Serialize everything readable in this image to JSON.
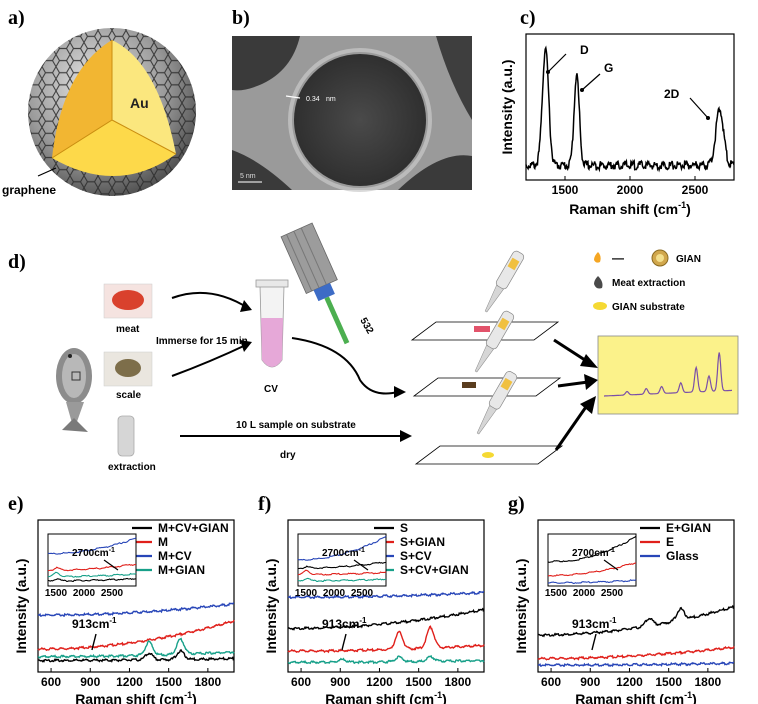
{
  "figure": {
    "panel_labels": [
      "a)",
      "b)",
      "c)",
      "d)",
      "e)",
      "f)",
      "g)"
    ]
  },
  "panel_a": {
    "core_label": "Au",
    "shell_label": "graphene",
    "colors": {
      "core": "#f2c23a",
      "core_light": "#fbe77e",
      "shell": "#8c8c8c"
    }
  },
  "panel_b": {
    "lattice_label": "0.34",
    "lattice_unit": "nm",
    "scale_bar": "5 nm"
  },
  "chart_data": [
    {
      "id": "c",
      "type": "line",
      "title": "",
      "xlabel": "Raman shift (cm",
      "xlabel_sup": "-1",
      "xlabel_end": ")",
      "ylabel": "Intensity (a.u.)",
      "xlim": [
        1200,
        2800
      ],
      "xticks": [
        "1500",
        "2000",
        "2500"
      ],
      "xtick_values": [
        1500,
        2000,
        2500
      ],
      "peaks": [
        {
          "label": "D",
          "x": 1350,
          "height": 0.8,
          "width": 24
        },
        {
          "label": "G",
          "x": 1590,
          "height": 0.62,
          "width": 20
        },
        {
          "label": "2D",
          "x": 2690,
          "height": 0.38,
          "width": 30
        }
      ],
      "baseline": 0.1,
      "color": "#000000"
    },
    {
      "id": "e",
      "type": "line",
      "xlabel": "Raman shift (cm",
      "xlabel_sup": "-1",
      "xlabel_end": ")",
      "ylabel": "Intensity (a.u.)",
      "xlim": [
        500,
        2000
      ],
      "xticks": [
        "600",
        "900",
        "1200",
        "1500",
        "1800"
      ],
      "xtick_values": [
        600,
        900,
        1200,
        1500,
        1800
      ],
      "annotation": "913cm",
      "annotation_sup": "-1",
      "inset_annotation": "2700cm",
      "inset_annotation_sup": "-1",
      "inset_xticks": [
        "1500",
        "2000",
        "2500"
      ],
      "legend": [
        "M+CV+GIAN",
        "M",
        "M+CV",
        "M+GIAN"
      ],
      "series": [
        {
          "name": "M+CV+GIAN",
          "color": "#000000",
          "base": 0.08,
          "slope": 0.02,
          "peaks": [
            [
              1350,
              0.07
            ],
            [
              1590,
              0.09
            ]
          ]
        },
        {
          "name": "M",
          "color": "#e0201b",
          "base": 0.2,
          "slope": 0.3,
          "peaks": []
        },
        {
          "name": "M+CV",
          "color": "#2846b8",
          "base": 0.56,
          "slope": 0.12,
          "peaks": []
        },
        {
          "name": "M+GIAN",
          "color": "#17a089",
          "base": 0.12,
          "slope": 0.05,
          "peaks": [
            [
              1350,
              0.14
            ],
            [
              1590,
              0.16
            ]
          ]
        }
      ]
    },
    {
      "id": "f",
      "type": "line",
      "xlabel": "Raman shift (cm",
      "xlabel_sup": "-1",
      "xlabel_end": ")",
      "ylabel": "Intensity (a.u.)",
      "xlim": [
        500,
        2000
      ],
      "xticks": [
        "600",
        "900",
        "1200",
        "1500",
        "1800"
      ],
      "xtick_values": [
        600,
        900,
        1200,
        1500,
        1800
      ],
      "annotation": "913cm",
      "annotation_sup": "-1",
      "inset_annotation": "2700cm",
      "inset_annotation_sup": "-1",
      "inset_xticks": [
        "1500",
        "2000",
        "2500"
      ],
      "legend": [
        "S",
        "S+GIAN",
        "S+CV",
        "S+CV+GIAN"
      ],
      "series": [
        {
          "name": "S",
          "color": "#000000",
          "base": 0.42,
          "slope": 0.2,
          "peaks": []
        },
        {
          "name": "S+GIAN",
          "color": "#e0201b",
          "base": 0.18,
          "slope": 0.06,
          "peaks": [
            [
              1350,
              0.18
            ],
            [
              1590,
              0.22
            ]
          ]
        },
        {
          "name": "S+CV",
          "color": "#2846b8",
          "base": 0.75,
          "slope": 0.05,
          "peaks": []
        },
        {
          "name": "S+CV+GIAN",
          "color": "#17a089",
          "base": 0.06,
          "slope": 0.02,
          "peaks": [
            [
              913,
              0.03
            ],
            [
              1350,
              0.05
            ],
            [
              1590,
              0.05
            ]
          ]
        }
      ]
    },
    {
      "id": "g",
      "type": "line",
      "xlabel": "Raman shift (cm",
      "xlabel_sup": "-1",
      "xlabel_end": ")",
      "ylabel": "Intensity (a.u.)",
      "xlim": [
        500,
        2000
      ],
      "xticks": [
        "600",
        "900",
        "1200",
        "1500",
        "1800"
      ],
      "xtick_values": [
        600,
        900,
        1200,
        1500,
        1800
      ],
      "annotation": "913cm",
      "annotation_sup": "-1",
      "inset_annotation": "2700cm",
      "inset_annotation_sup": "-1",
      "inset_xticks": [
        "1500",
        "2000",
        "2500"
      ],
      "legend": [
        "E+GIAN",
        "E",
        "Glass"
      ],
      "series": [
        {
          "name": "E+GIAN",
          "color": "#000000",
          "base": 0.35,
          "slope": 0.3,
          "peaks": [
            [
              1350,
              0.08
            ],
            [
              1590,
              0.12
            ]
          ]
        },
        {
          "name": "E",
          "color": "#e0201b",
          "base": 0.1,
          "slope": 0.12,
          "peaks": []
        },
        {
          "name": "Glass",
          "color": "#2846b8",
          "base": 0.03,
          "slope": 0.02,
          "peaks": []
        }
      ]
    }
  ],
  "panel_d": {
    "meat_label": "meat",
    "scale_label": "scale",
    "extraction_label": "extraction",
    "immerse_label": "Immerse for 15 min",
    "tube_label": "CV",
    "laser_label": "532",
    "sample_label": "10 L sample on substrate",
    "dry_label": "dry",
    "legend": {
      "dash": "—",
      "gian": "GIAN",
      "meat_extraction": "Meat extraction",
      "gian_substrate": "GIAN substrate"
    },
    "colors": {
      "spectrum_bg": "#fbf28a",
      "spectrum_line": "#7a4fa8",
      "tube_liquid": "#e6a8d8"
    }
  }
}
